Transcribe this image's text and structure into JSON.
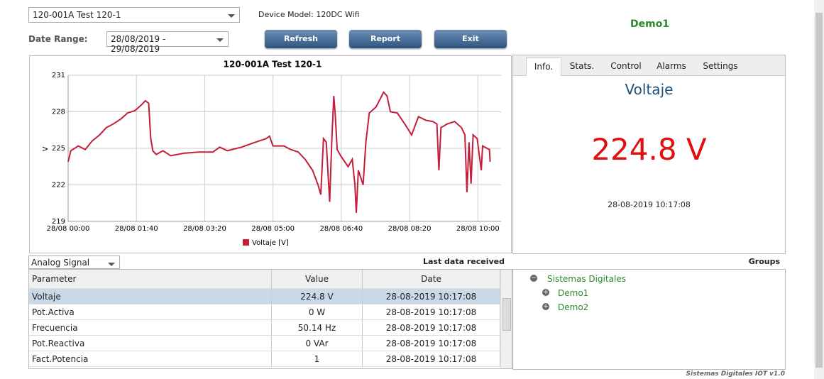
{
  "header": {
    "device_select": "120-001A Test 120-1",
    "device_model": "Device Model: 120DC Wifi",
    "date_range_label": "Date Range:",
    "date_range": "28/08/2019 - 29/08/2019",
    "buttons": [
      "Refresh",
      "Report",
      "Exit"
    ],
    "site": "Demo1"
  },
  "chart_data": {
    "type": "line",
    "title": "120-001A Test 120-1",
    "y_label": "V",
    "x": [
      0,
      4,
      15,
      25,
      35,
      46,
      56,
      66,
      77,
      87,
      98,
      108,
      113,
      118,
      121,
      124,
      129,
      139,
      150,
      170,
      191,
      212,
      222,
      233,
      254,
      274,
      290,
      295,
      300,
      316,
      326,
      337,
      347,
      358,
      366,
      370,
      374,
      378,
      383,
      386,
      389,
      391,
      394,
      399,
      410,
      416,
      420,
      422,
      425,
      432,
      436,
      441,
      451,
      462,
      467,
      472,
      482,
      493,
      503,
      513,
      524,
      534,
      540,
      543,
      546,
      555,
      566,
      576,
      581,
      584,
      587,
      590,
      593,
      599,
      605,
      607,
      617,
      618
    ],
    "series": [
      {
        "name": "Voltaje [V]",
        "color": "#c41e3a",
        "values": [
          223.9,
          224.8,
          225.2,
          224.9,
          225.6,
          226.1,
          226.7,
          227.0,
          227.4,
          227.9,
          228.1,
          228.6,
          228.9,
          228.7,
          225.8,
          224.8,
          224.5,
          224.8,
          224.4,
          224.6,
          224.7,
          224.7,
          225.1,
          224.8,
          225.1,
          225.5,
          225.8,
          226.0,
          225.2,
          225.2,
          224.9,
          224.7,
          224.1,
          223.2,
          222.0,
          221.2,
          225.8,
          225.5,
          220.6,
          225.5,
          229.3,
          227.9,
          224.9,
          224.4,
          223.5,
          224.1,
          222.0,
          219.7,
          223.2,
          222.0,
          225.5,
          227.9,
          228.4,
          229.6,
          229.3,
          228.0,
          227.9,
          227.0,
          226.1,
          227.6,
          227.3,
          227.2,
          227.0,
          223.2,
          226.7,
          227.0,
          227.2,
          226.7,
          226.1,
          221.4,
          225.5,
          222.1,
          226.1,
          225.8,
          223.2,
          225.2,
          224.9,
          223.9
        ]
      }
    ],
    "xlim": [
      0,
      634
    ],
    "xticks": [
      {
        "value": 0,
        "label": "28/08 00:00"
      },
      {
        "value": 100,
        "label": "28/08 01:40"
      },
      {
        "value": 200,
        "label": "28/08 03:20"
      },
      {
        "value": 300,
        "label": "28/08 05:00"
      },
      {
        "value": 400,
        "label": "28/08 06:40"
      },
      {
        "value": 500,
        "label": "28/08 08:20"
      },
      {
        "value": 600,
        "label": "28/08 10:00"
      }
    ],
    "ylim": [
      219,
      231
    ],
    "yticks": [
      219,
      222,
      225,
      228,
      231
    ],
    "grid": true
  },
  "info": {
    "tabs": [
      "Info.",
      "Stats.",
      "Control",
      "Alarms",
      "Settings"
    ],
    "title": "Voltaje",
    "value": "224.8 V",
    "timestamp": "28-08-2019 10:17:08"
  },
  "table": {
    "select": "Analog Signal",
    "caption": "Last data received",
    "headers": [
      "Parameter",
      "Value",
      "Date"
    ],
    "rows": [
      [
        "Voltaje",
        "224.8 V",
        "28-08-2019 10:17:08"
      ],
      [
        "Pot.Activa",
        "0 W",
        "28-08-2019 10:17:08"
      ],
      [
        "Frecuencia",
        "50.14 Hz",
        "28-08-2019 10:17:08"
      ],
      [
        "Pot.Reactiva",
        "0 VAr",
        "28-08-2019 10:17:08"
      ],
      [
        "Fact.Potencia",
        "1",
        "28-08-2019 10:17:08"
      ]
    ]
  },
  "groups": {
    "title": "Groups",
    "root": "Sistemas Digitales",
    "children": [
      "Demo1",
      "Demo2"
    ]
  },
  "footer": "Sistemas Digitales IOT v1.0"
}
